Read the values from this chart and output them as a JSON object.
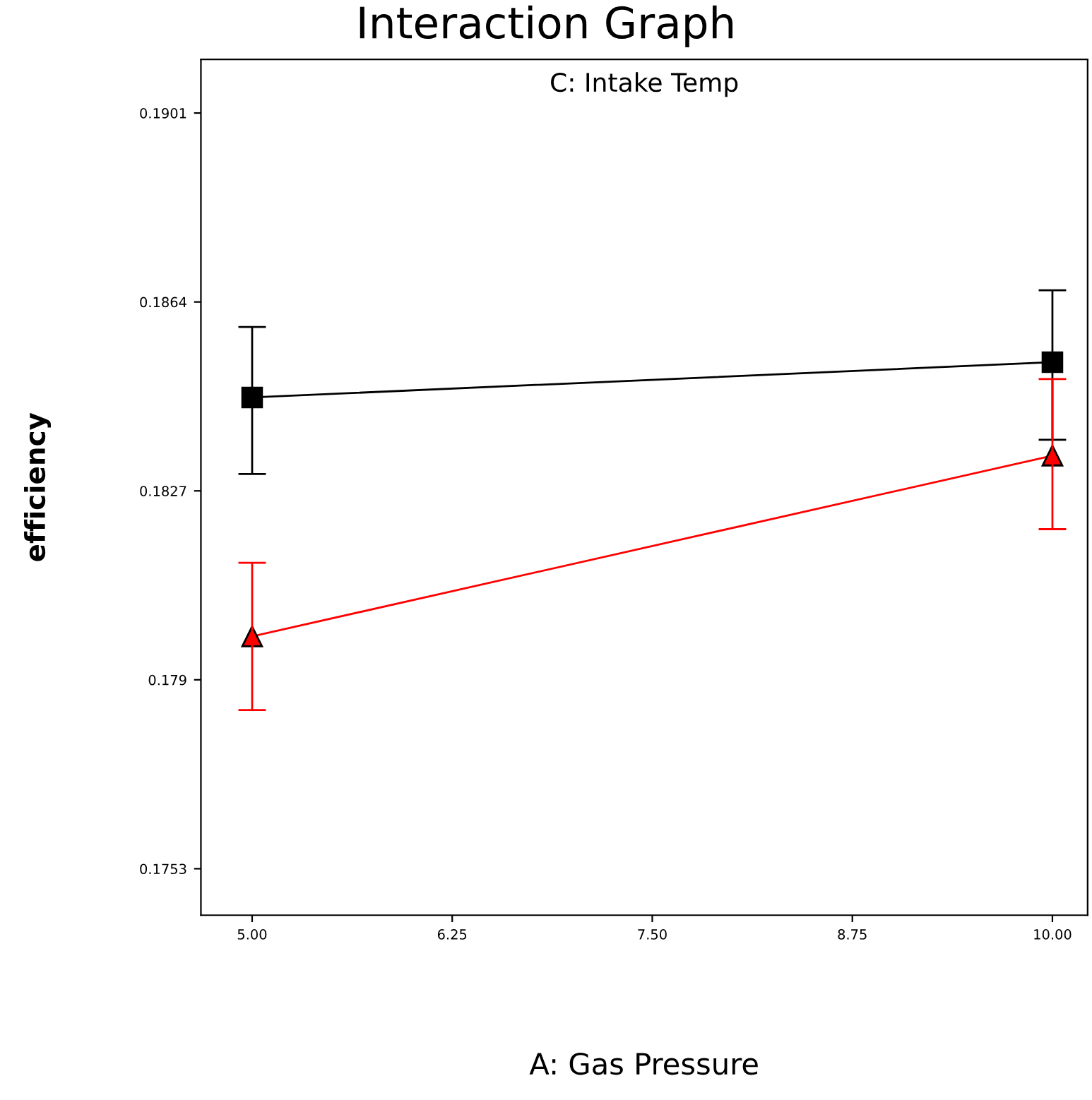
{
  "chart_data": {
    "type": "line",
    "title": "Interaction Graph",
    "subtitle": "C: Intake Temp",
    "xlabel": "A: Gas Pressure",
    "ylabel": "efficiency",
    "x": [
      5,
      10
    ],
    "series": [
      {
        "color": "#000000",
        "marker": "square",
        "values": [
          0.18453,
          0.18522
        ],
        "errors": [
          [
            0.18303,
            0.18591
          ],
          [
            0.1837,
            0.18663
          ]
        ]
      },
      {
        "color": "#ff0000",
        "marker": "triangle",
        "values": [
          0.17985,
          0.18339
        ],
        "errors": [
          [
            0.17841,
            0.18129
          ],
          [
            0.18195,
            0.18489
          ]
        ]
      }
    ],
    "xlim": [
      4.68,
      10.22
    ],
    "ylim": [
      0.17439,
      0.19115
    ],
    "xticks": [
      {
        "value": 5,
        "label": "5.00"
      },
      {
        "value": 6.25,
        "label": "6.25"
      },
      {
        "value": 7.5,
        "label": "7.50"
      },
      {
        "value": 8.75,
        "label": "8.75"
      },
      {
        "value": 10,
        "label": "10.00"
      }
    ],
    "yticks": [
      0.1753,
      0.179,
      0.1827,
      0.1864,
      0.1901
    ],
    "grid": false,
    "legend": false
  }
}
